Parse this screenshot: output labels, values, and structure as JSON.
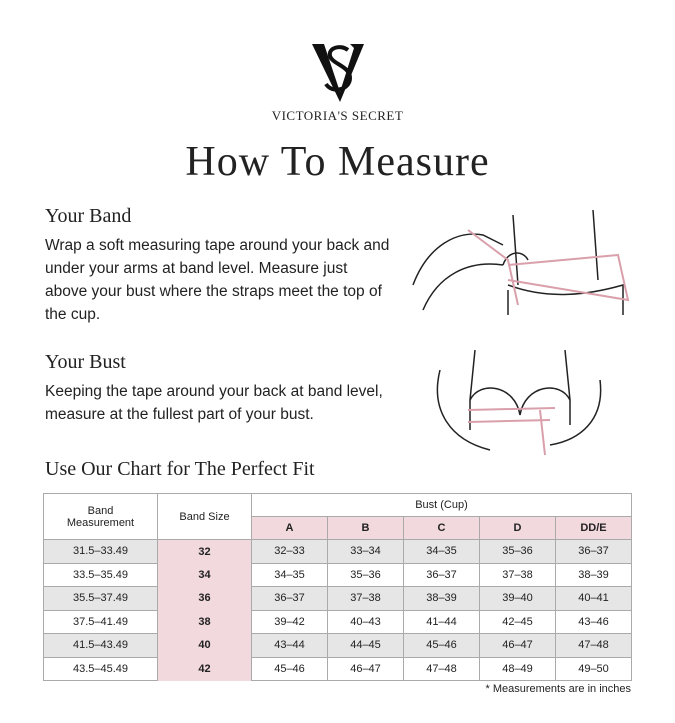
{
  "brand": {
    "name": "VICTORIA'S SECRET",
    "logo": "VS"
  },
  "title": "How To Measure",
  "band_section": {
    "heading": "Your Band",
    "text": "Wrap a soft measuring tape around your back and under your arms at band level.  Measure just above your bust where the straps meet the top of the cup."
  },
  "bust_section": {
    "heading": "Your Bust",
    "text": "Keeping the tape around your back at band level, measure at the fullest part of your bust."
  },
  "chart_heading": "Use Our Chart for The Perfect Fit",
  "table": {
    "col_band_measurement": "Band Measurement",
    "col_band_size": "Band Size",
    "col_bust": "Bust (Cup)",
    "cups": [
      "A",
      "B",
      "C",
      "D",
      "DD/E"
    ],
    "rows": [
      {
        "measurement": "31.5–33.49",
        "size": "32",
        "values": [
          "32–33",
          "33–34",
          "34–35",
          "35–36",
          "36–37"
        ]
      },
      {
        "measurement": "33.5–35.49",
        "size": "34",
        "values": [
          "34–35",
          "35–36",
          "36–37",
          "37–38",
          "38–39"
        ]
      },
      {
        "measurement": "35.5–37.49",
        "size": "36",
        "values": [
          "36–37",
          "37–38",
          "38–39",
          "39–40",
          "40–41"
        ]
      },
      {
        "measurement": "37.5–41.49",
        "size": "38",
        "values": [
          "39–42",
          "40–43",
          "41–44",
          "42–45",
          "43–46"
        ]
      },
      {
        "measurement": "41.5–43.49",
        "size": "40",
        "values": [
          "43–44",
          "44–45",
          "45–46",
          "46–47",
          "47–48"
        ]
      },
      {
        "measurement": "43.5–45.49",
        "size": "42",
        "values": [
          "45–46",
          "46–47",
          "47–48",
          "48–49",
          "49–50"
        ]
      }
    ]
  },
  "note": "* Measurements are in inches",
  "colors": {
    "pink": "#f2d9de",
    "gray": "#e6e6e6",
    "tape": "#d9a0ac"
  }
}
